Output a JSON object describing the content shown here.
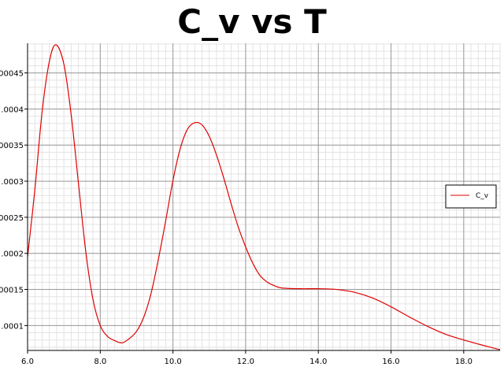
{
  "colors": {
    "series": "#e00000",
    "major_grid": "#9a9a9a",
    "minor_grid": "#e3e3e3",
    "axis": "#000000"
  },
  "chart_data": {
    "type": "line",
    "title": "C_v vs T",
    "xlabel": "",
    "ylabel": "",
    "xlim": [
      6.0,
      19.0
    ],
    "ylim": [
      6.55e-05,
      0.000491
    ],
    "grid": true,
    "legend_position": "right",
    "x_ticks": [
      {
        "value": 6.0,
        "label": "6.0"
      },
      {
        "value": 8.0,
        "label": "8.0"
      },
      {
        "value": 10.0,
        "label": "10.0"
      },
      {
        "value": 12.0,
        "label": "12.0"
      },
      {
        "value": 14.0,
        "label": "14.0"
      },
      {
        "value": 16.0,
        "label": "16.0"
      },
      {
        "value": 18.0,
        "label": "18.0"
      }
    ],
    "y_ticks": [
      {
        "value": 0.0001,
        "label": ".0001"
      },
      {
        "value": 0.00015,
        "label": ".00015"
      },
      {
        "value": 0.0002,
        "label": ".0002"
      },
      {
        "value": 0.00025,
        "label": ".00025"
      },
      {
        "value": 0.0003,
        "label": ".0003"
      },
      {
        "value": 0.00035,
        "label": ".00035"
      },
      {
        "value": 0.0004,
        "label": ".0004"
      },
      {
        "value": 0.00045,
        "label": ".00045"
      }
    ],
    "series": [
      {
        "name": "C_v",
        "x": [
          6.0,
          6.2,
          6.4,
          6.6,
          6.78,
          7.0,
          7.2,
          7.4,
          7.6,
          7.8,
          8.0,
          8.2,
          8.4,
          8.6,
          8.8,
          9.0,
          9.2,
          9.4,
          9.6,
          9.8,
          10.0,
          10.2,
          10.4,
          10.6,
          10.8,
          11.0,
          11.2,
          11.4,
          11.6,
          11.8,
          12.0,
          12.2,
          12.4,
          12.6,
          12.8,
          13.0,
          13.5,
          14.0,
          14.5,
          15.0,
          15.5,
          16.0,
          16.5,
          17.0,
          17.5,
          18.0,
          18.5,
          19.0
        ],
        "y": [
          0.000195,
          0.000288,
          0.000396,
          0.000466,
          0.000489,
          0.000462,
          0.000392,
          0.000297,
          0.000203,
          0.000136,
          0.0001,
          8.5e-05,
          7.9e-05,
          7.6e-05,
          8.2e-05,
          9.2e-05,
          0.000112,
          0.000145,
          0.000192,
          0.000245,
          0.000301,
          0.000345,
          0.000372,
          0.000381,
          0.000378,
          0.000362,
          0.000336,
          0.000304,
          0.000269,
          0.000236,
          0.000209,
          0.000186,
          0.000169,
          0.00016,
          0.000155,
          0.000152,
          0.000151,
          0.000151,
          0.00015,
          0.000146,
          0.000138,
          0.000126,
          0.000112,
          9.9e-05,
          8.8e-05,
          8e-05,
          7.3e-05,
          6.65e-05
        ]
      }
    ]
  }
}
